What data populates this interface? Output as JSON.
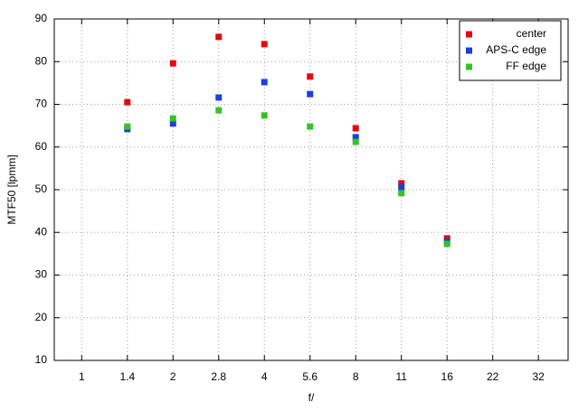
{
  "chart_data": {
    "type": "scatter",
    "x_label": "f/",
    "y_label": "MTF50 [lpmm]",
    "categories": [
      "1",
      "1.4",
      "2",
      "2.8",
      "4",
      "5.6",
      "8",
      "11",
      "16",
      "22",
      "32"
    ],
    "series": [
      {
        "name": "center",
        "color": "#e8060c",
        "values": [
          null,
          70.5,
          79.6,
          85.8,
          84.1,
          76.5,
          64.4,
          51.5,
          38.6,
          null,
          null
        ]
      },
      {
        "name": "APS-C edge",
        "color": "#1c3fd6",
        "values": [
          null,
          64.2,
          65.5,
          71.6,
          75.2,
          72.4,
          62.3,
          50.6,
          37.9,
          null,
          null
        ]
      },
      {
        "name": "FF edge",
        "color": "#35c326",
        "values": [
          null,
          64.8,
          66.7,
          68.6,
          67.4,
          64.8,
          61.2,
          49.2,
          37.3,
          null,
          null
        ]
      }
    ],
    "ylim": [
      10,
      90
    ],
    "yticks": [
      10,
      20,
      30,
      40,
      50,
      60,
      70,
      80,
      90
    ],
    "grid": true,
    "legend": "top-right"
  }
}
